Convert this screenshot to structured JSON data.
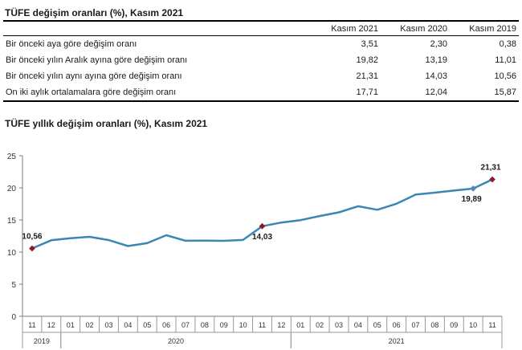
{
  "table": {
    "title": "TÜFE değişim oranları (%), Kasım 2021",
    "columns": [
      "Kasım 2021",
      "Kasım 2020",
      "Kasım 2019"
    ],
    "rows": [
      {
        "label": "Bir önceki aya göre değişim oranı",
        "values": [
          "3,51",
          "2,30",
          "0,38"
        ]
      },
      {
        "label": "Bir önceki yılın Aralık ayına göre değişim oranı",
        "values": [
          "19,82",
          "13,19",
          "11,01"
        ]
      },
      {
        "label": "Bir önceki yılın aynı ayına göre değişim oranı",
        "values": [
          "21,31",
          "14,03",
          "10,56"
        ]
      },
      {
        "label": "On iki aylık ortalamalara göre değişim oranı",
        "values": [
          "17,71",
          "12,04",
          "15,87"
        ]
      }
    ]
  },
  "chart_title": "TÜFE yıllık değişim oranları (%), Kasım 2021",
  "chart_data": {
    "type": "line",
    "title": "TÜFE yıllık değişim oranları (%), Kasım 2021",
    "categories": [
      "11",
      "12",
      "01",
      "02",
      "03",
      "04",
      "05",
      "06",
      "07",
      "08",
      "09",
      "10",
      "11",
      "12",
      "01",
      "02",
      "03",
      "04",
      "05",
      "06",
      "07",
      "08",
      "09",
      "10",
      "11"
    ],
    "year_groups": [
      {
        "label": "2019",
        "from": 0,
        "to": 1
      },
      {
        "label": "2020",
        "from": 2,
        "to": 13
      },
      {
        "label": "2021",
        "from": 14,
        "to": 24
      }
    ],
    "series": [
      {
        "values": [
          10.56,
          11.84,
          12.15,
          12.37,
          11.86,
          10.94,
          11.39,
          12.62,
          11.76,
          11.77,
          11.75,
          11.89,
          14.03,
          14.6,
          14.97,
          15.61,
          16.19,
          17.14,
          16.59,
          17.53,
          18.95,
          19.25,
          19.58,
          19.89,
          21.31
        ],
        "color": "#3a87b4"
      }
    ],
    "highlighted_points": [
      {
        "index": 0,
        "label": "10,56",
        "color": "#8b1a2e"
      },
      {
        "index": 12,
        "label": "14,03",
        "color": "#8b1a2e"
      },
      {
        "index": 23,
        "label": "19,89",
        "color": "#5b86b5"
      },
      {
        "index": 24,
        "label": "21,31",
        "color": "#8b1a2e"
      }
    ],
    "yticks": [
      "0",
      "5",
      "10",
      "15",
      "20",
      "25"
    ],
    "ylim": [
      0,
      25
    ],
    "grid": false,
    "legend": "none"
  }
}
